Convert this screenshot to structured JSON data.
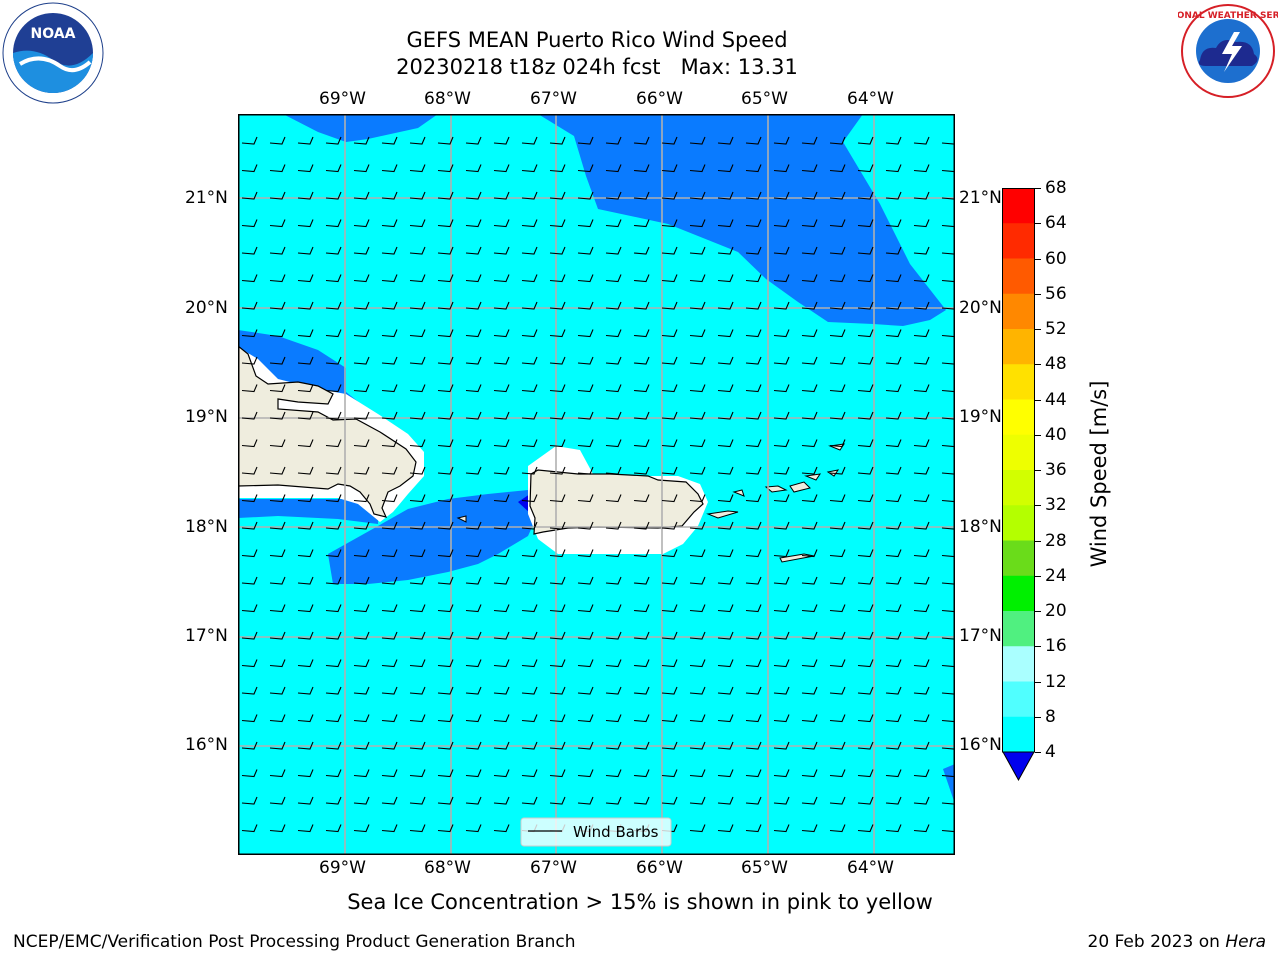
{
  "title_line1": "GEFS MEAN Puerto Rico Wind Speed",
  "title_line2": "20230218 t18z 024h fcst   Max: 13.31",
  "map": {
    "lon_ticks": [
      "69°W",
      "68°W",
      "67°W",
      "66°W",
      "65°W",
      "64°W"
    ],
    "lat_ticks": [
      "21°N",
      "20°N",
      "19°N",
      "18°N",
      "17°N",
      "16°N"
    ],
    "colors": {
      "land": "#efedde",
      "level_4_8": "#0a7bff",
      "level_8_12": "#00ffff",
      "level_0_4": "#0000ee"
    },
    "legend_label": "Wind Barbs"
  },
  "colorbar": {
    "label": "Wind Speed [m/s]",
    "levels": [
      "68",
      "64",
      "60",
      "56",
      "52",
      "48",
      "44",
      "40",
      "36",
      "32",
      "28",
      "24",
      "20",
      "16",
      "12",
      "8",
      "4"
    ],
    "colors": [
      "#ff0000",
      "#ff2a00",
      "#ff5a00",
      "#ff8800",
      "#ffb400",
      "#ffe100",
      "#ffff00",
      "#eeff00",
      "#d2ff00",
      "#b4ff00",
      "#6adc1a",
      "#00f000",
      "#50f080",
      "#aaffff",
      "#50ffff",
      "#00ffff",
      "#0a7bff"
    ],
    "under_color": "#0000ee"
  },
  "caption": "Sea Ice Concentration > 15% is shown in pink to yellow",
  "footer_left": "NCEP/EMC/Verification Post Processing Product Generation Branch",
  "footer_right_date": "20 Feb 2023 on ",
  "footer_right_host": "Hera",
  "logos": {
    "noaa_text": "NOAA",
    "nws_text": "NATIONAL WEATHER SERVICE"
  }
}
